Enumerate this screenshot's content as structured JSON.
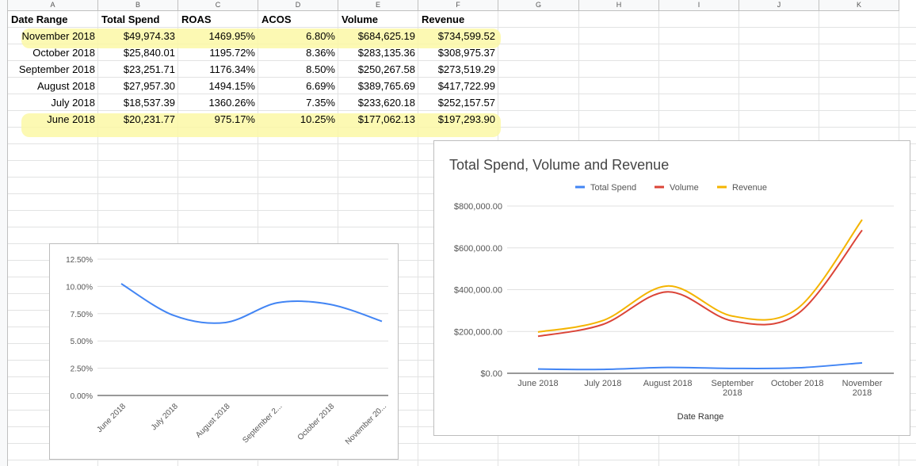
{
  "columns": [
    "A",
    "B",
    "C",
    "D",
    "E",
    "F",
    "G",
    "H",
    "I",
    "J",
    "K"
  ],
  "table": {
    "headers": [
      "Date Range",
      "Total Spend",
      "ROAS",
      "ACOS",
      "Volume",
      "Revenue"
    ],
    "rows": [
      [
        "November 2018",
        "$49,974.33",
        "1469.95%",
        "6.80%",
        "$684,625.19",
        "$734,599.52"
      ],
      [
        "October 2018",
        "$25,840.01",
        "1195.72%",
        "8.36%",
        "$283,135.36",
        "$308,975.37"
      ],
      [
        "September 2018",
        "$23,251.71",
        "1176.34%",
        "8.50%",
        "$250,267.58",
        "$273,519.29"
      ],
      [
        "August 2018",
        "$27,957.30",
        "1494.15%",
        "6.69%",
        "$389,765.69",
        "$417,722.99"
      ],
      [
        "July 2018",
        "$18,537.39",
        "1360.26%",
        "7.35%",
        "$233,620.18",
        "$252,157.57"
      ],
      [
        "June 2018",
        "$20,231.77",
        "975.17%",
        "10.25%",
        "$177,062.13",
        "$197,293.90"
      ]
    ]
  },
  "colors": {
    "highlight": "#fbf8a6",
    "spend": "#4285f4",
    "volume": "#db4437",
    "revenue": "#f4b400"
  },
  "chart_data": [
    {
      "type": "line",
      "title": "",
      "categories": [
        "June 2018",
        "July 2018",
        "August 2018",
        "September 2...",
        "October 2018",
        "November 20..."
      ],
      "series": [
        {
          "values": [
            0.1025,
            0.0735,
            0.0669,
            0.085,
            0.0836,
            0.068
          ]
        }
      ],
      "ylim": [
        0,
        0.125
      ],
      "yticks": [
        "0.00%",
        "2.50%",
        "5.00%",
        "7.50%",
        "10.00%",
        "12.50%"
      ],
      "grid": true,
      "legend": "none"
    },
    {
      "type": "line",
      "title": "Total Spend, Volume and Revenue",
      "xlabel": "Date Range",
      "ylabel": "",
      "categories": [
        [
          "June 2018"
        ],
        [
          "July 2018"
        ],
        [
          "August 2018"
        ],
        [
          "September",
          "2018"
        ],
        [
          "October 2018"
        ],
        [
          "November",
          "2018"
        ]
      ],
      "series": [
        {
          "name": "Total Spend",
          "values": [
            20231.77,
            18537.39,
            27957.3,
            23251.71,
            25840.01,
            49974.33
          ]
        },
        {
          "name": "Volume",
          "values": [
            177062.13,
            233620.18,
            389765.69,
            250267.58,
            283135.36,
            684625.19
          ]
        },
        {
          "name": "Revenue",
          "values": [
            197293.9,
            252157.57,
            417722.99,
            273519.29,
            308975.37,
            734599.52
          ]
        }
      ],
      "ylim": [
        0,
        800000
      ],
      "yticks": [
        "$0.00",
        "$200,000.00",
        "$400,000.00",
        "$600,000.00",
        "$800,000.00"
      ],
      "grid": true,
      "legend": "top"
    }
  ]
}
